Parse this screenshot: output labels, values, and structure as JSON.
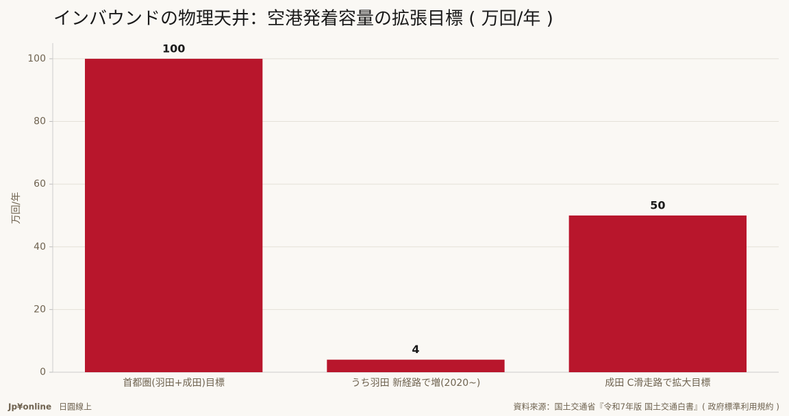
{
  "chart_data": {
    "type": "bar",
    "title": "インバウンドの物理天井：空港発着容量の拡張目標 ( 万回/年 )",
    "ylabel": "万回/年",
    "categories": [
      "首都圏(羽田+成田)目標",
      "うち羽田 新経路で増(2020~)",
      "成田 C滑走路で拡大目標"
    ],
    "values": [
      100,
      4,
      50
    ],
    "color": "#b8162c",
    "ylim": [
      0,
      105
    ],
    "yticks": [
      0,
      20,
      40,
      60,
      80,
      100
    ],
    "grid": true,
    "brand": "Jp¥online",
    "brand_sub": "日圓線上",
    "source": "資料來源：国土交通省『令和7年版 国土交通白書』( 政府標準利用規約 )"
  }
}
